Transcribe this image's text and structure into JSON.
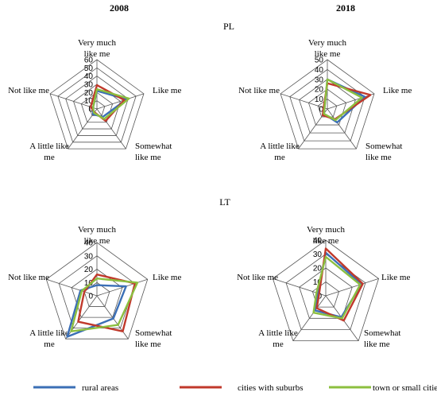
{
  "headers": {
    "col_left": "2008",
    "col_right": "2018",
    "row_top": "PL",
    "row_bottom": "LT"
  },
  "legend": [
    {
      "label": "rural areas",
      "color": "#3b6fb6"
    },
    {
      "label": "cities with suburbs",
      "color": "#c0392b"
    },
    {
      "label": "town or small cities",
      "color": "#8cbf3f"
    }
  ],
  "chart_data": [
    {
      "type": "radar",
      "country": "PL",
      "year": "2008",
      "categories": [
        "Very much like me",
        "Like me",
        "Somewhat like me",
        "A little like me",
        "Not like me"
      ],
      "category_lines": [
        [
          "Very much",
          "like me"
        ],
        [
          "Like me"
        ],
        [
          "Somewhat",
          "like me"
        ],
        [
          "A little like",
          "me"
        ],
        [
          "Not like me"
        ]
      ],
      "rmax": 60,
      "ticks": [
        0,
        10,
        20,
        30,
        40,
        50,
        60
      ],
      "series": [
        {
          "name": "rural areas",
          "color": "#3b6fb6",
          "values": [
            22,
            38,
            12,
            8,
            5
          ]
        },
        {
          "name": "cities with suburbs",
          "color": "#c0392b",
          "values": [
            29,
            35,
            18,
            5,
            8
          ]
        },
        {
          "name": "town or small cities",
          "color": "#8cbf3f",
          "values": [
            24,
            41,
            15,
            6,
            5
          ]
        }
      ]
    },
    {
      "type": "radar",
      "country": "PL",
      "year": "2018",
      "categories": [
        "Very much like me",
        "Like me",
        "Somewhat like me",
        "A little like me",
        "Not like me"
      ],
      "category_lines": [
        [
          "Very much",
          "like me"
        ],
        [
          "Like me"
        ],
        [
          "Somewhat",
          "like me"
        ],
        [
          "A little like",
          "me"
        ],
        [
          "Not like me"
        ]
      ],
      "rmax": 50,
      "ticks": [
        0,
        10,
        20,
        30,
        40,
        50
      ],
      "series": [
        {
          "name": "rural areas",
          "color": "#3b6fb6",
          "values": [
            30,
            40,
            17,
            6,
            3
          ]
        },
        {
          "name": "cities with suburbs",
          "color": "#c0392b",
          "values": [
            26,
            46,
            13,
            8,
            4
          ]
        },
        {
          "name": "town or small cities",
          "color": "#8cbf3f",
          "values": [
            30,
            37,
            14,
            6,
            3
          ]
        }
      ]
    },
    {
      "type": "radar",
      "country": "LT",
      "year": "2008",
      "categories": [
        "Very much like me",
        "Like me",
        "Somewhat like me",
        "A little like me",
        "Not like me"
      ],
      "category_lines": [
        [
          "Very much",
          "like me"
        ],
        [
          "Like me"
        ],
        [
          "Somewhat",
          "like me"
        ],
        [
          "A little like",
          "me"
        ],
        [
          "Not like me"
        ]
      ],
      "rmax": 40,
      "ticks": [
        0,
        10,
        20,
        30,
        40
      ],
      "series": [
        {
          "name": "rural areas",
          "color": "#3b6fb6",
          "values": [
            8,
            23,
            21,
            38,
            13
          ]
        },
        {
          "name": "cities with suburbs",
          "color": "#c0392b",
          "values": [
            16,
            30,
            33,
            24,
            10
          ]
        },
        {
          "name": "town or small cities",
          "color": "#8cbf3f",
          "values": [
            13,
            32,
            27,
            33,
            12
          ]
        }
      ]
    },
    {
      "type": "radar",
      "country": "LT",
      "year": "2018",
      "categories": [
        "Very much like me",
        "Like me",
        "Somewhat like me",
        "A little like me",
        "Not like me"
      ],
      "category_lines": [
        [
          "Very much",
          "like me"
        ],
        [
          "Like me"
        ],
        [
          "Somewhat",
          "like me"
        ],
        [
          "A little like",
          "me"
        ],
        [
          "Not like me"
        ]
      ],
      "rmax": 40,
      "ticks": [
        0,
        10,
        20,
        30,
        40
      ],
      "series": [
        {
          "name": "rural areas",
          "color": "#3b6fb6",
          "values": [
            31,
            27,
            19,
            13,
            6
          ]
        },
        {
          "name": "cities with suburbs",
          "color": "#c0392b",
          "values": [
            34,
            28,
            22,
            11,
            5
          ]
        },
        {
          "name": "town or small cities",
          "color": "#8cbf3f",
          "values": [
            28,
            26,
            20,
            15,
            7
          ]
        }
      ]
    }
  ]
}
